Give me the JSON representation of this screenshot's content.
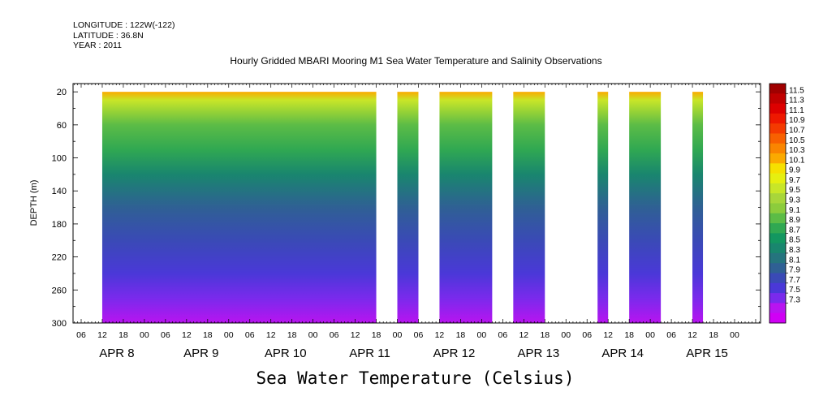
{
  "header": {
    "longitude": "LONGITUDE : 122W(-122)",
    "latitude": "LATITUDE : 36.8N",
    "year": "YEAR : 2011"
  },
  "chart_data": {
    "type": "heatmap",
    "title": "Hourly Gridded MBARI Mooring M1 Sea Water Temperature and Salinity Observations",
    "xlabel": "Sea Water Temperature (Celsius)",
    "ylabel": "DEPTH (m)",
    "y_axis": {
      "range": [
        0,
        300
      ],
      "inverted": true,
      "tick_labels": [
        "20",
        "60",
        "100",
        "140",
        "180",
        "220",
        "260",
        "300"
      ],
      "tick_values": [
        20,
        60,
        100,
        140,
        180,
        220,
        260,
        300
      ]
    },
    "x_axis": {
      "hour_ticks": [
        "06",
        "12",
        "18",
        "00",
        "06",
        "12",
        "18",
        "00",
        "06",
        "12",
        "18",
        "00",
        "06",
        "12",
        "18",
        "00",
        "06",
        "12",
        "18",
        "00",
        "06",
        "12",
        "18",
        "00",
        "06",
        "12",
        "18",
        "00",
        "06",
        "12",
        "18",
        "00"
      ],
      "day_labels": [
        "APR  8",
        "APR  9",
        "APR 10",
        "APR 11",
        "APR 12",
        "APR 13",
        "APR 14",
        "APR 15"
      ]
    },
    "colorbar": {
      "labels": [
        "11.5",
        "11.3",
        "11.1",
        "10.9",
        "10.7",
        "10.5",
        "10.3",
        "10.1",
        "9.9",
        "9.7",
        "9.5",
        "9.3",
        "9.1",
        "8.9",
        "8.7",
        "8.5",
        "8.3",
        "8.1",
        "7.9",
        "7.7",
        "7.5",
        "7.3"
      ],
      "colors": [
        "#a00000",
        "#c00000",
        "#dd0000",
        "#ee1800",
        "#f43a00",
        "#f86000",
        "#fa8500",
        "#fbaa00",
        "#f6e000",
        "#e6ef10",
        "#c8e628",
        "#a8d63a",
        "#8ccc3c",
        "#5cbc46",
        "#30a852",
        "#139760",
        "#19866e",
        "#25747e",
        "#2f6094",
        "#3a4ab6",
        "#4a38d8",
        "#7a2aec",
        "#b814f0",
        "#d000f5"
      ],
      "range": [
        7.3,
        11.5
      ]
    },
    "segments": [
      {
        "start": "APR 8 12",
        "end": "APR 11 18"
      },
      {
        "start": "APR 12 00",
        "end": "APR 12 06"
      },
      {
        "start": "APR 12 12",
        "end": "APR 13 03"
      },
      {
        "start": "APR 13 09",
        "end": "APR 13 18"
      },
      {
        "start": "APR 14 09",
        "end": "APR 14 12"
      },
      {
        "start": "APR 14 18",
        "end": "APR 15 03"
      },
      {
        "start": "APR 15 12",
        "end": "APR 15 15"
      }
    ],
    "temperature_profile": [
      {
        "depth": 20,
        "temp": 10.3
      },
      {
        "depth": 30,
        "temp": 9.6
      },
      {
        "depth": 60,
        "temp": 9.2
      },
      {
        "depth": 90,
        "temp": 8.9
      },
      {
        "depth": 120,
        "temp": 8.5
      },
      {
        "depth": 160,
        "temp": 8.2
      },
      {
        "depth": 200,
        "temp": 8.0
      },
      {
        "depth": 240,
        "temp": 7.8
      },
      {
        "depth": 270,
        "temp": 7.6
      },
      {
        "depth": 300,
        "temp": 7.4
      }
    ],
    "grid": false,
    "legend": "right"
  }
}
